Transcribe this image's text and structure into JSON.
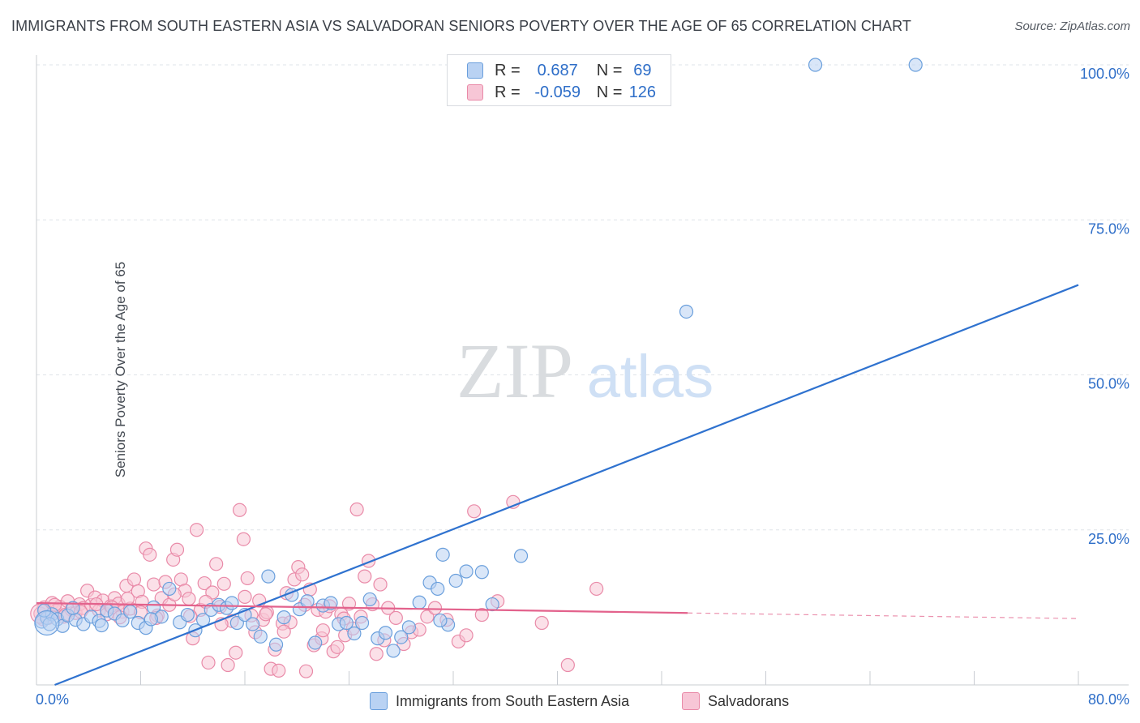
{
  "title": "IMMIGRANTS FROM SOUTH EASTERN ASIA VS SALVADORAN SENIORS POVERTY OVER THE AGE OF 65 CORRELATION CHART",
  "source": "Source: ZipAtlas.com",
  "watermark": {
    "zip": "ZIP",
    "atlas": "atlas"
  },
  "legend": {
    "r_label": "R =",
    "n_label": "N =",
    "rows": [
      {
        "r": "0.687",
        "n": "69"
      },
      {
        "r": "-0.059",
        "n": "126"
      }
    ]
  },
  "colors": {
    "blue_fill": "#b9d2f3",
    "blue_stroke": "#6a9fdc",
    "blue_line": "#2f72cf",
    "pink_fill": "#f7c6d6",
    "pink_stroke": "#e98aa8",
    "pink_line": "#e3628c",
    "tick_label": "#2e6ec8",
    "grid": "#dfe3e8"
  },
  "chart_data": {
    "type": "scatter",
    "title": "IMMIGRANTS FROM SOUTH EASTERN ASIA VS SALVADORAN SENIORS POVERTY OVER THE AGE OF 65 CORRELATION CHART",
    "xlabel": "",
    "ylabel": "Seniors Poverty Over the Age of 65",
    "xlim": [
      0,
      80
    ],
    "ylim": [
      0,
      100
    ],
    "x_tick_labels": [
      "0.0%",
      "80.0%"
    ],
    "y_tick_labels": [
      "25.0%",
      "50.0%",
      "75.0%",
      "100.0%"
    ],
    "y_ticks": [
      25,
      50,
      75,
      100
    ],
    "grid": true,
    "legend_position": "top-center",
    "series": [
      {
        "name": "Immigrants from South Eastern Asia",
        "r": 0.687,
        "n": 69,
        "trend": {
          "x": [
            1.4,
            80
          ],
          "y": [
            0.0,
            64.5
          ]
        },
        "points": [
          [
            0.4,
            10.2
          ],
          [
            0.8,
            10.8
          ],
          [
            1.2,
            11.4
          ],
          [
            1.6,
            10.6
          ],
          [
            2.0,
            9.5
          ],
          [
            2.4,
            11.2
          ],
          [
            3.0,
            10.5
          ],
          [
            3.6,
            9.8
          ],
          [
            4.2,
            11.0
          ],
          [
            4.8,
            10.3
          ],
          [
            5.4,
            12.0
          ],
          [
            6.0,
            11.5
          ],
          [
            6.6,
            10.4
          ],
          [
            7.2,
            11.8
          ],
          [
            7.8,
            10.0
          ],
          [
            8.4,
            9.2
          ],
          [
            9.0,
            12.5
          ],
          [
            9.6,
            11.0
          ],
          [
            10.2,
            15.5
          ],
          [
            11.0,
            10.1
          ],
          [
            11.6,
            11.3
          ],
          [
            12.2,
            8.8
          ],
          [
            12.8,
            10.5
          ],
          [
            13.4,
            12.1
          ],
          [
            14.0,
            12.9
          ],
          [
            14.6,
            12.4
          ],
          [
            15.4,
            10.0
          ],
          [
            16.0,
            11.3
          ],
          [
            16.6,
            9.8
          ],
          [
            17.2,
            7.8
          ],
          [
            17.8,
            17.5
          ],
          [
            18.4,
            6.5
          ],
          [
            19.0,
            10.9
          ],
          [
            19.6,
            14.5
          ],
          [
            20.2,
            12.2
          ],
          [
            20.8,
            13.5
          ],
          [
            21.4,
            6.8
          ],
          [
            22.0,
            12.8
          ],
          [
            22.6,
            13.2
          ],
          [
            23.2,
            9.8
          ],
          [
            23.8,
            10.0
          ],
          [
            24.4,
            8.3
          ],
          [
            25.0,
            10.0
          ],
          [
            25.6,
            13.8
          ],
          [
            26.2,
            7.5
          ],
          [
            26.8,
            8.4
          ],
          [
            27.4,
            5.5
          ],
          [
            28.0,
            7.7
          ],
          [
            28.6,
            9.3
          ],
          [
            29.4,
            13.3
          ],
          [
            30.2,
            16.5
          ],
          [
            30.8,
            15.5
          ],
          [
            31.2,
            21.0
          ],
          [
            31.6,
            9.7
          ],
          [
            32.2,
            16.8
          ],
          [
            33.0,
            18.3
          ],
          [
            34.2,
            18.2
          ],
          [
            35.0,
            13.0
          ],
          [
            37.2,
            20.8
          ],
          [
            49.9,
            60.2
          ],
          [
            59.8,
            100.0
          ],
          [
            67.5,
            100.0
          ],
          [
            0.6,
            12.0
          ],
          [
            1.0,
            9.8
          ],
          [
            2.8,
            12.4
          ],
          [
            5.0,
            9.6
          ],
          [
            8.8,
            10.6
          ],
          [
            15.0,
            13.2
          ],
          [
            31.0,
            10.4
          ]
        ]
      },
      {
        "name": "Salvadorans",
        "r": -0.059,
        "n": 126,
        "trend": {
          "x": [
            0,
            50
          ],
          "y": [
            13.2,
            11.6
          ],
          "dashed_to": [
            80,
            10.7
          ]
        },
        "points": [
          [
            0.3,
            11.5
          ],
          [
            0.6,
            12.5
          ],
          [
            0.9,
            10.8
          ],
          [
            1.2,
            13.2
          ],
          [
            1.5,
            11.9
          ],
          [
            1.8,
            12.6
          ],
          [
            2.1,
            11.0
          ],
          [
            2.4,
            13.5
          ],
          [
            2.7,
            12.1
          ],
          [
            3.0,
            11.6
          ],
          [
            3.3,
            13.0
          ],
          [
            3.6,
            12.4
          ],
          [
            3.9,
            15.2
          ],
          [
            4.2,
            12.9
          ],
          [
            4.5,
            14.1
          ],
          [
            4.8,
            12.0
          ],
          [
            5.1,
            13.6
          ],
          [
            5.4,
            11.4
          ],
          [
            5.7,
            12.7
          ],
          [
            6.0,
            14.0
          ],
          [
            6.3,
            13.1
          ],
          [
            6.6,
            11.8
          ],
          [
            6.9,
            16.0
          ],
          [
            7.2,
            12.3
          ],
          [
            7.5,
            17.0
          ],
          [
            7.8,
            15.1
          ],
          [
            8.1,
            13.4
          ],
          [
            8.4,
            22.0
          ],
          [
            8.7,
            21.0
          ],
          [
            9.0,
            16.2
          ],
          [
            9.3,
            11.2
          ],
          [
            9.6,
            14.0
          ],
          [
            9.9,
            16.6
          ],
          [
            10.2,
            12.9
          ],
          [
            10.5,
            20.2
          ],
          [
            10.8,
            21.8
          ],
          [
            11.1,
            17.0
          ],
          [
            11.4,
            15.2
          ],
          [
            11.7,
            13.9
          ],
          [
            12.0,
            7.5
          ],
          [
            12.3,
            25.0
          ],
          [
            12.6,
            12.1
          ],
          [
            12.9,
            16.4
          ],
          [
            13.2,
            3.6
          ],
          [
            13.5,
            14.9
          ],
          [
            13.8,
            19.5
          ],
          [
            14.1,
            12.6
          ],
          [
            14.4,
            16.3
          ],
          [
            14.7,
            3.2
          ],
          [
            15.0,
            10.3
          ],
          [
            15.3,
            5.2
          ],
          [
            15.6,
            28.2
          ],
          [
            15.9,
            23.5
          ],
          [
            16.2,
            17.2
          ],
          [
            16.5,
            11.2
          ],
          [
            16.8,
            8.5
          ],
          [
            17.1,
            13.6
          ],
          [
            17.4,
            10.5
          ],
          [
            17.7,
            11.7
          ],
          [
            18.0,
            2.6
          ],
          [
            18.3,
            5.7
          ],
          [
            18.6,
            2.3
          ],
          [
            18.9,
            9.9
          ],
          [
            19.2,
            14.8
          ],
          [
            19.5,
            10.1
          ],
          [
            19.8,
            17.0
          ],
          [
            20.1,
            19.0
          ],
          [
            20.4,
            17.8
          ],
          [
            20.7,
            2.2
          ],
          [
            21.0,
            15.4
          ],
          [
            21.3,
            6.4
          ],
          [
            21.6,
            12.1
          ],
          [
            21.9,
            7.5
          ],
          [
            22.2,
            11.8
          ],
          [
            22.5,
            12.7
          ],
          [
            22.8,
            5.4
          ],
          [
            23.1,
            6.1
          ],
          [
            23.4,
            11.4
          ],
          [
            23.7,
            8.0
          ],
          [
            24.0,
            13.1
          ],
          [
            24.3,
            9.1
          ],
          [
            24.6,
            28.3
          ],
          [
            24.9,
            11.0
          ],
          [
            25.2,
            17.5
          ],
          [
            25.5,
            20.0
          ],
          [
            25.8,
            13.0
          ],
          [
            26.1,
            5.0
          ],
          [
            26.4,
            16.2
          ],
          [
            26.7,
            7.2
          ],
          [
            27.0,
            12.4
          ],
          [
            27.6,
            10.8
          ],
          [
            28.2,
            6.6
          ],
          [
            28.8,
            8.5
          ],
          [
            29.4,
            8.9
          ],
          [
            30.0,
            11.0
          ],
          [
            30.6,
            12.4
          ],
          [
            31.5,
            10.5
          ],
          [
            32.4,
            7.0
          ],
          [
            33.0,
            8.0
          ],
          [
            33.6,
            28.0
          ],
          [
            34.2,
            11.3
          ],
          [
            35.4,
            13.5
          ],
          [
            36.6,
            29.5
          ],
          [
            38.8,
            10.0
          ],
          [
            40.8,
            3.2
          ],
          [
            43.0,
            15.5
          ],
          [
            0.5,
            10.6
          ],
          [
            1.4,
            12.9
          ],
          [
            2.2,
            11.3
          ],
          [
            3.4,
            11.8
          ],
          [
            4.6,
            13.0
          ],
          [
            5.8,
            12.5
          ],
          [
            6.4,
            10.9
          ],
          [
            7.0,
            13.9
          ],
          [
            8.0,
            11.7
          ],
          [
            9.2,
            10.8
          ],
          [
            10.6,
            14.6
          ],
          [
            11.8,
            11.1
          ],
          [
            13.0,
            13.4
          ],
          [
            14.2,
            9.8
          ],
          [
            16.0,
            14.2
          ],
          [
            17.6,
            11.4
          ],
          [
            19.0,
            8.6
          ],
          [
            20.6,
            12.9
          ],
          [
            22.0,
            8.8
          ],
          [
            23.6,
            10.7
          ]
        ]
      }
    ]
  },
  "bottom_legend": [
    "Immigrants from South Eastern Asia",
    "Salvadorans"
  ]
}
